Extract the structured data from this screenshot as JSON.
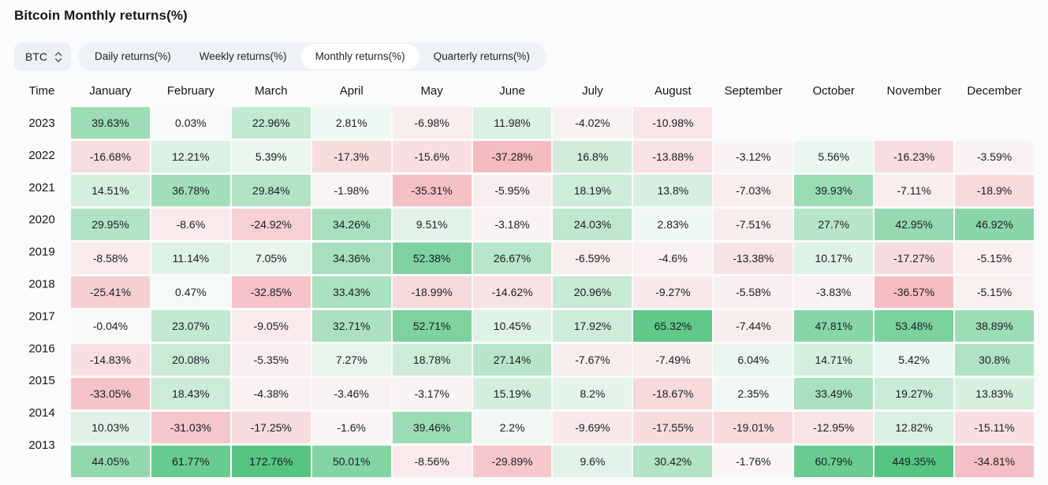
{
  "title": "Bitcoin Monthly returns(%)",
  "selector": {
    "value": "BTC"
  },
  "tabs": [
    {
      "label": "Daily returns(%)",
      "active": false
    },
    {
      "label": "Weekly returns(%)",
      "active": false
    },
    {
      "label": "Monthly returns(%)",
      "active": true
    },
    {
      "label": "Quarterly returns(%)",
      "active": false
    }
  ],
  "chart_data": {
    "type": "heatmap",
    "title": "Bitcoin Monthly returns(%)",
    "unit": "%",
    "columns": [
      "Time",
      "January",
      "February",
      "March",
      "April",
      "May",
      "June",
      "July",
      "August",
      "September",
      "October",
      "November",
      "December"
    ],
    "rows": [
      {
        "year": "2023",
        "cells": [
          "39.63%",
          "0.03%",
          "22.96%",
          "2.81%",
          "-6.98%",
          "11.98%",
          "-4.02%",
          "-10.98%",
          "",
          "",
          "",
          ""
        ]
      },
      {
        "year": "2022",
        "cells": [
          "-16.68%",
          "12.21%",
          "5.39%",
          "-17.3%",
          "-15.6%",
          "-37.28%",
          "16.8%",
          "-13.88%",
          "-3.12%",
          "5.56%",
          "-16.23%",
          "-3.59%"
        ]
      },
      {
        "year": "2021",
        "cells": [
          "14.51%",
          "36.78%",
          "29.84%",
          "-1.98%",
          "-35.31%",
          "-5.95%",
          "18.19%",
          "13.8%",
          "-7.03%",
          "39.93%",
          "-7.11%",
          "-18.9%"
        ]
      },
      {
        "year": "2020",
        "cells": [
          "29.95%",
          "-8.6%",
          "-24.92%",
          "34.26%",
          "9.51%",
          "-3.18%",
          "24.03%",
          "2.83%",
          "-7.51%",
          "27.7%",
          "42.95%",
          "46.92%"
        ]
      },
      {
        "year": "2019",
        "cells": [
          "-8.58%",
          "11.14%",
          "7.05%",
          "34.36%",
          "52.38%",
          "26.67%",
          "-6.59%",
          "-4.6%",
          "-13.38%",
          "10.17%",
          "-17.27%",
          "-5.15%"
        ]
      },
      {
        "year": "2018",
        "cells": [
          "-25.41%",
          "0.47%",
          "-32.85%",
          "33.43%",
          "-18.99%",
          "-14.62%",
          "20.96%",
          "-9.27%",
          "-5.58%",
          "-3.83%",
          "-36.57%",
          "-5.15%"
        ]
      },
      {
        "year": "2017",
        "cells": [
          "-0.04%",
          "23.07%",
          "-9.05%",
          "32.71%",
          "52.71%",
          "10.45%",
          "17.92%",
          "65.32%",
          "-7.44%",
          "47.81%",
          "53.48%",
          "38.89%"
        ]
      },
      {
        "year": "2016",
        "cells": [
          "-14.83%",
          "20.08%",
          "-5.35%",
          "7.27%",
          "18.78%",
          "27.14%",
          "-7.67%",
          "-7.49%",
          "6.04%",
          "14.71%",
          "5.42%",
          "30.8%"
        ]
      },
      {
        "year": "2015",
        "cells": [
          "-33.05%",
          "18.43%",
          "-4.38%",
          "-3.46%",
          "-3.17%",
          "15.19%",
          "8.2%",
          "-18.67%",
          "2.35%",
          "33.49%",
          "19.27%",
          "13.83%"
        ]
      },
      {
        "year": "2014",
        "cells": [
          "10.03%",
          "-31.03%",
          "-17.25%",
          "-1.6%",
          "39.46%",
          "2.2%",
          "-9.69%",
          "-17.55%",
          "-19.01%",
          "-12.95%",
          "12.82%",
          "-15.11%"
        ]
      },
      {
        "year": "2013",
        "cells": [
          "44.05%",
          "61.77%",
          "172.76%",
          "50.01%",
          "-8.56%",
          "-29.89%",
          "9.6%",
          "30.42%",
          "-1.76%",
          "60.79%",
          "449.35%",
          "-34.81%"
        ]
      }
    ],
    "color_scale": {
      "positive_max_color": "#55c581",
      "negative_max_color": "#f4b8bd",
      "positive_base_color": "#f7faf8",
      "negative_base_color": "#faf8f8",
      "positive_cap": 70,
      "negative_cap": 40
    }
  }
}
